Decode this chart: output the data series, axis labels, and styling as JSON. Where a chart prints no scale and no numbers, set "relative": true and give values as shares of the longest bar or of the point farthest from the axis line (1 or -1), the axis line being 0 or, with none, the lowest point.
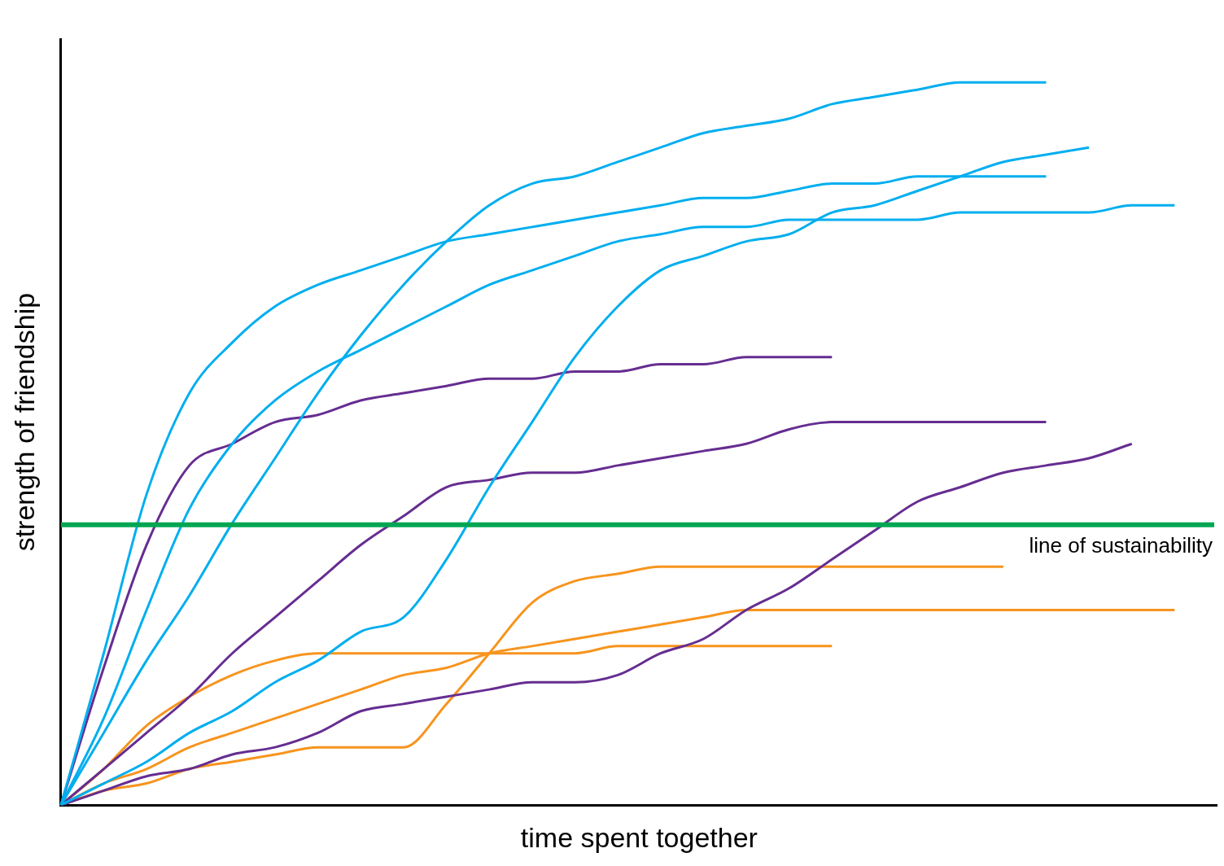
{
  "chart_data": {
    "type": "line",
    "relative": true,
    "xlabel": "time spent together",
    "ylabel": "strength of friendship",
    "legend": false,
    "grid": false,
    "marker": "none",
    "line_style": "solid",
    "categories": [
      null,
      null,
      null,
      null,
      null,
      null,
      null,
      null,
      null,
      null,
      null,
      null,
      null,
      null,
      null,
      null,
      null,
      null,
      null,
      null,
      null,
      null,
      null,
      null,
      null,
      null,
      null,
      null
    ],
    "series": [
      {
        "color": "#00aeef",
        "values": [
          0,
          0.21,
          0.43,
          0.57,
          0.64,
          0.69,
          0.72,
          0.74,
          0.76,
          0.78,
          0.79,
          0.8,
          0.81,
          0.82,
          0.83,
          0.84,
          0.84,
          0.85,
          0.86,
          0.86,
          0.87,
          0.87,
          0.87,
          0.87,
          null,
          null,
          null,
          null
        ]
      },
      {
        "color": "#00aeef",
        "values": [
          0,
          0.12,
          0.27,
          0.41,
          0.5,
          0.56,
          0.6,
          0.63,
          0.66,
          0.69,
          0.72,
          0.74,
          0.76,
          0.78,
          0.79,
          0.8,
          0.8,
          0.81,
          0.81,
          0.81,
          0.81,
          0.82,
          0.82,
          0.82,
          0.82,
          0.83,
          0.83,
          null
        ]
      },
      {
        "color": "#00aeef",
        "values": [
          0,
          0.1,
          0.2,
          0.29,
          0.39,
          0.48,
          0.57,
          0.65,
          0.72,
          0.78,
          0.83,
          0.86,
          0.87,
          0.89,
          0.91,
          0.93,
          0.94,
          0.95,
          0.97,
          0.98,
          0.99,
          1,
          1,
          1,
          null,
          null,
          null,
          null
        ]
      },
      {
        "color": "#00aeef",
        "values": [
          0,
          0.03,
          0.06,
          0.1,
          0.13,
          0.17,
          0.2,
          0.24,
          0.26,
          0.34,
          0.44,
          0.53,
          0.62,
          0.69,
          0.74,
          0.76,
          0.78,
          0.79,
          0.82,
          0.83,
          0.85,
          0.87,
          0.89,
          0.9,
          0.91,
          null,
          null,
          null
        ]
      },
      {
        "color": "#662d91",
        "values": [
          0,
          0.19,
          0.36,
          0.47,
          0.5,
          0.53,
          0.54,
          0.56,
          0.57,
          0.58,
          0.59,
          0.59,
          0.6,
          0.6,
          0.61,
          0.61,
          0.62,
          0.62,
          0.62,
          null,
          null,
          null,
          null,
          null,
          null,
          null,
          null,
          null
        ]
      },
      {
        "color": "#662d91",
        "values": [
          0,
          0.05,
          0.1,
          0.15,
          0.21,
          0.26,
          0.31,
          0.36,
          0.4,
          0.44,
          0.45,
          0.46,
          0.46,
          0.47,
          0.48,
          0.49,
          0.5,
          0.52,
          0.53,
          0.53,
          0.53,
          0.53,
          0.53,
          0.53,
          null,
          null,
          null,
          null
        ]
      },
      {
        "color": "#662d91",
        "values": [
          0,
          0.02,
          0.04,
          0.05,
          0.07,
          0.08,
          0.1,
          0.13,
          0.14,
          0.15,
          0.16,
          0.17,
          0.17,
          0.18,
          0.21,
          0.23,
          0.27,
          0.3,
          0.34,
          0.38,
          0.42,
          0.44,
          0.46,
          0.47,
          0.48,
          0.5,
          null,
          null
        ]
      },
      {
        "color": "#f7941d",
        "values": [
          0,
          0.05,
          0.11,
          0.15,
          0.18,
          0.2,
          0.21,
          0.21,
          0.21,
          0.21,
          0.21,
          0.21,
          0.21,
          0.22,
          0.22,
          0.22,
          0.22,
          0.22,
          0.22,
          null,
          null,
          null,
          null,
          null,
          null,
          null,
          null,
          null
        ]
      },
      {
        "color": "#f7941d",
        "values": [
          0,
          0.02,
          0.03,
          0.05,
          0.06,
          0.07,
          0.08,
          0.08,
          0.08,
          0.14,
          0.21,
          0.28,
          0.31,
          0.32,
          0.33,
          0.33,
          0.33,
          0.33,
          0.33,
          0.33,
          0.33,
          0.33,
          0.33,
          null,
          null,
          null,
          null,
          null
        ]
      },
      {
        "color": "#f7941d",
        "values": [
          0,
          0.03,
          0.05,
          0.08,
          0.1,
          0.12,
          0.14,
          0.16,
          0.18,
          0.19,
          0.21,
          0.22,
          0.23,
          0.24,
          0.25,
          0.26,
          0.27,
          0.27,
          0.27,
          0.27,
          0.27,
          0.27,
          0.27,
          0.27,
          0.27,
          0.27,
          0.27,
          null
        ]
      }
    ],
    "ref_lines": [
      {
        "axis": "y",
        "value": 0.388,
        "label": "line of sustainability",
        "color": "#00a651"
      }
    ]
  }
}
